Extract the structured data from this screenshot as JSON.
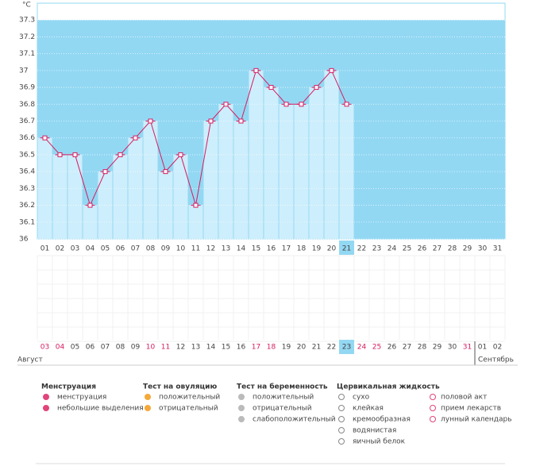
{
  "chart_data": {
    "type": "bar",
    "unit": "°C",
    "categories": [
      "01",
      "02",
      "03",
      "04",
      "05",
      "06",
      "07",
      "08",
      "09",
      "10",
      "11",
      "12",
      "13",
      "14",
      "15",
      "16",
      "17",
      "18",
      "19",
      "20",
      "21",
      "22",
      "23",
      "24",
      "25",
      "26",
      "27",
      "28",
      "29",
      "30",
      "31"
    ],
    "values": [
      36.6,
      36.5,
      36.5,
      36.2,
      36.4,
      36.5,
      36.6,
      36.7,
      36.4,
      36.5,
      36.2,
      36.7,
      36.8,
      36.7,
      37.0,
      36.9,
      36.8,
      36.8,
      36.9,
      37.0,
      36.8,
      null,
      null,
      null,
      null,
      null,
      null,
      null,
      null,
      null,
      null
    ],
    "ylim": [
      36,
      37.4
    ],
    "yticks": [
      36,
      36.1,
      36.2,
      36.3,
      36.4,
      36.5,
      36.6,
      36.7,
      36.8,
      36.9,
      37,
      37.1,
      37.2,
      37.3
    ],
    "color": "#cdeefc",
    "line_color": "#d81b60",
    "background": "#93d8f3",
    "highlight_index": 20,
    "dates": [
      "03",
      "04",
      "05",
      "06",
      "07",
      "08",
      "09",
      "10",
      "11",
      "12",
      "13",
      "14",
      "15",
      "16",
      "17",
      "18",
      "19",
      "20",
      "21",
      "22",
      "23",
      "24",
      "25",
      "26",
      "27",
      "28",
      "29",
      "30",
      "31",
      "01",
      "02"
    ],
    "red_date_indices": [
      0,
      1,
      7,
      8,
      14,
      15,
      21,
      22,
      28
    ],
    "months": [
      {
        "label": "Август",
        "start": 0
      },
      {
        "label": "Сентябрь",
        "start": 29
      }
    ]
  },
  "legend": [
    {
      "title": "Менструация",
      "items": [
        "менструация",
        "небольшие выделения"
      ]
    },
    {
      "title": "Тест на овуляцию",
      "items": [
        "положительный",
        "отрицательный"
      ]
    },
    {
      "title": "Тест на беременность",
      "items": [
        "положительный",
        "отрицательный",
        "слабоположительный"
      ]
    },
    {
      "title": "Цервикальная жидкость",
      "items": [
        "сухо",
        "клейкая",
        "кремообразная",
        "водянистая",
        "яичный белок"
      ]
    }
  ],
  "other_marks": [
    "половой акт",
    "прием лекарств",
    "лунный календарь"
  ]
}
